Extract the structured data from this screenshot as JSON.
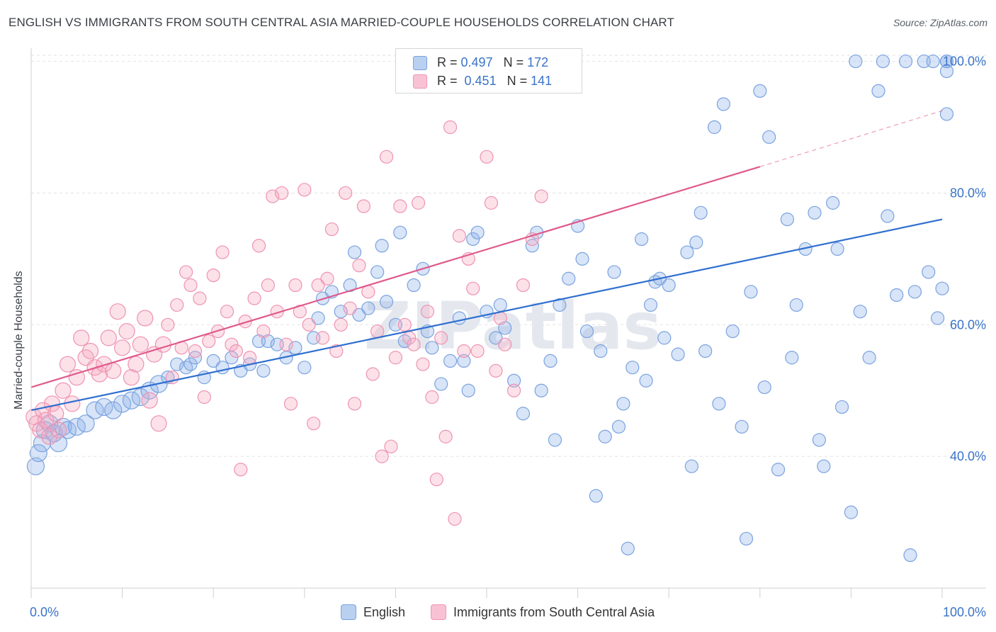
{
  "chart_data": {
    "type": "scatter",
    "title": "ENGLISH VS IMMIGRANTS FROM SOUTH CENTRAL ASIA MARRIED-COUPLE HOUSEHOLDS CORRELATION CHART",
    "source": "Source: ZipAtlas.com",
    "xlabel": "",
    "ylabel": "Married-couple Households",
    "xlim": [
      0,
      100
    ],
    "ylim": [
      20,
      102
    ],
    "x_tick_labels": [
      "0.0%",
      "100.0%"
    ],
    "y_ticks": [
      40,
      60,
      80,
      100
    ],
    "y_tick_labels": [
      "40.0%",
      "60.0%",
      "80.0%",
      "100.0%"
    ],
    "watermark": "ZIPatlas",
    "legend": {
      "rows": [
        {
          "r_label": "R =",
          "r_value": "0.497",
          "n_label": "N =",
          "n_value": "172"
        },
        {
          "r_label": "R =",
          "r_value": "0.451",
          "n_label": "N =",
          "n_value": "141"
        }
      ]
    },
    "series": [
      {
        "name": "English",
        "color": "#8fb3e8",
        "line_color": "#2f6fd0",
        "trend": {
          "x": [
            0,
            100
          ],
          "y": [
            47.0,
            76.0
          ]
        },
        "points": [
          [
            0.5,
            38.5
          ],
          [
            0.8,
            40.5
          ],
          [
            1.2,
            42
          ],
          [
            1.5,
            44
          ],
          [
            2,
            45
          ],
          [
            2.5,
            43.5
          ],
          [
            3,
            42
          ],
          [
            3.5,
            44.5
          ],
          [
            4,
            44
          ],
          [
            5,
            44.5
          ],
          [
            6,
            45
          ],
          [
            7,
            47
          ],
          [
            8,
            47.5
          ],
          [
            9,
            47
          ],
          [
            10,
            48
          ],
          [
            11,
            48.5
          ],
          [
            12,
            49
          ],
          [
            13,
            50
          ],
          [
            14,
            51
          ],
          [
            15,
            52
          ],
          [
            16,
            54
          ],
          [
            17,
            53.5
          ],
          [
            17.5,
            54
          ],
          [
            18,
            55
          ],
          [
            19,
            52
          ],
          [
            20,
            54.5
          ],
          [
            21,
            53.5
          ],
          [
            22,
            55
          ],
          [
            23,
            53
          ],
          [
            24,
            54
          ],
          [
            25,
            57.5
          ],
          [
            25.5,
            53
          ],
          [
            26,
            57.5
          ],
          [
            27,
            57
          ],
          [
            28,
            55
          ],
          [
            29,
            56.5
          ],
          [
            30,
            53.5
          ],
          [
            31,
            58
          ],
          [
            31.5,
            61
          ],
          [
            32,
            64
          ],
          [
            33,
            65
          ],
          [
            34,
            62
          ],
          [
            35,
            66
          ],
          [
            35.5,
            71
          ],
          [
            36,
            61.5
          ],
          [
            37,
            62.5
          ],
          [
            38,
            68
          ],
          [
            38.5,
            72
          ],
          [
            39,
            63.5
          ],
          [
            40,
            60
          ],
          [
            40.5,
            74
          ],
          [
            41,
            57.5
          ],
          [
            42,
            66
          ],
          [
            43,
            68.5
          ],
          [
            43.5,
            59
          ],
          [
            44,
            56.5
          ],
          [
            45,
            51
          ],
          [
            46,
            54.5
          ],
          [
            47,
            61
          ],
          [
            47.5,
            54.5
          ],
          [
            48,
            50
          ],
          [
            48.5,
            73
          ],
          [
            49,
            74
          ],
          [
            50,
            62
          ],
          [
            51,
            58
          ],
          [
            51.5,
            63
          ],
          [
            52,
            59.5
          ],
          [
            53,
            51.5
          ],
          [
            54,
            46.5
          ],
          [
            55,
            72
          ],
          [
            55.5,
            74
          ],
          [
            56,
            50
          ],
          [
            57,
            54.5
          ],
          [
            57.5,
            42.5
          ],
          [
            58,
            63
          ],
          [
            59,
            67
          ],
          [
            60,
            75
          ],
          [
            60.5,
            70
          ],
          [
            61,
            59
          ],
          [
            62,
            34
          ],
          [
            62.5,
            56
          ],
          [
            63,
            43
          ],
          [
            64,
            68
          ],
          [
            64.5,
            44.5
          ],
          [
            65,
            48
          ],
          [
            65.5,
            26
          ],
          [
            66,
            53.5
          ],
          [
            67,
            73
          ],
          [
            67.5,
            51.5
          ],
          [
            68,
            63
          ],
          [
            68.5,
            66.5
          ],
          [
            69,
            67
          ],
          [
            69.5,
            58
          ],
          [
            70,
            66
          ],
          [
            71,
            55.5
          ],
          [
            72,
            71
          ],
          [
            72.5,
            38.5
          ],
          [
            73,
            72.5
          ],
          [
            73.5,
            77
          ],
          [
            74,
            56
          ],
          [
            75,
            90
          ],
          [
            75.5,
            48
          ],
          [
            76,
            93.5
          ],
          [
            77,
            59
          ],
          [
            78,
            44.5
          ],
          [
            78.5,
            27.5
          ],
          [
            79,
            65
          ],
          [
            80,
            95.5
          ],
          [
            80.5,
            50.5
          ],
          [
            81,
            88.5
          ],
          [
            82,
            38
          ],
          [
            83,
            76
          ],
          [
            83.5,
            55
          ],
          [
            84,
            63
          ],
          [
            85,
            71.5
          ],
          [
            86,
            77
          ],
          [
            86.5,
            42.5
          ],
          [
            87,
            38.5
          ],
          [
            88,
            78.5
          ],
          [
            88.5,
            71.5
          ],
          [
            89,
            47.5
          ],
          [
            90,
            31.5
          ],
          [
            90.5,
            100
          ],
          [
            91,
            62
          ],
          [
            92,
            55
          ],
          [
            93,
            95.5
          ],
          [
            93.5,
            100
          ],
          [
            94,
            76.5
          ],
          [
            95,
            64.5
          ],
          [
            96,
            100
          ],
          [
            96.5,
            25
          ],
          [
            97,
            65
          ],
          [
            98,
            100
          ],
          [
            98.5,
            68
          ],
          [
            99,
            100
          ],
          [
            99.5,
            61
          ],
          [
            100,
            65.5
          ],
          [
            100.5,
            100
          ],
          [
            101,
            98.5
          ],
          [
            102,
            100
          ],
          [
            103,
            92
          ]
        ]
      },
      {
        "name": "Immigrants from South Central Asia",
        "color": "#f5a8c0",
        "line_color": "#e05a8c",
        "trend": {
          "x": [
            0,
            80
          ],
          "y": [
            50.5,
            84.0
          ]
        },
        "trend_dashed": {
          "x": [
            80,
            100
          ],
          "y": [
            84.0,
            92.5
          ]
        },
        "points": [
          [
            0.3,
            46
          ],
          [
            0.6,
            45
          ],
          [
            1,
            44
          ],
          [
            1.3,
            47
          ],
          [
            1.6,
            45.5
          ],
          [
            2,
            43
          ],
          [
            2.3,
            48
          ],
          [
            2.7,
            46.5
          ],
          [
            3,
            44
          ],
          [
            3.5,
            50
          ],
          [
            4,
            54
          ],
          [
            4.5,
            48
          ],
          [
            5,
            52
          ],
          [
            5.5,
            58
          ],
          [
            6,
            55
          ],
          [
            6.5,
            56
          ],
          [
            7,
            53.5
          ],
          [
            7.5,
            52.5
          ],
          [
            8,
            54
          ],
          [
            8.5,
            58
          ],
          [
            9,
            53
          ],
          [
            9.5,
            62
          ],
          [
            10,
            56.5
          ],
          [
            10.5,
            59
          ],
          [
            11,
            52
          ],
          [
            11.5,
            54
          ],
          [
            12,
            57
          ],
          [
            12.5,
            61
          ],
          [
            13,
            48.5
          ],
          [
            13.5,
            55.5
          ],
          [
            14,
            45
          ],
          [
            14.5,
            57
          ],
          [
            15,
            60
          ],
          [
            15.5,
            52
          ],
          [
            16,
            63
          ],
          [
            16.5,
            56.5
          ],
          [
            17,
            68
          ],
          [
            17.5,
            66
          ],
          [
            18,
            56
          ],
          [
            18.5,
            64
          ],
          [
            19,
            49
          ],
          [
            19.5,
            57.5
          ],
          [
            20,
            67.5
          ],
          [
            20.5,
            59
          ],
          [
            21,
            71
          ],
          [
            21.5,
            62
          ],
          [
            22,
            57
          ],
          [
            22.5,
            56
          ],
          [
            23,
            38
          ],
          [
            23.5,
            60.5
          ],
          [
            24,
            55
          ],
          [
            24.5,
            64
          ],
          [
            25,
            72
          ],
          [
            25.5,
            59
          ],
          [
            26,
            66
          ],
          [
            26.5,
            79.5
          ],
          [
            27,
            62
          ],
          [
            27.5,
            80
          ],
          [
            28,
            57
          ],
          [
            28.5,
            48
          ],
          [
            29,
            66
          ],
          [
            29.5,
            62
          ],
          [
            30,
            80.5
          ],
          [
            30.5,
            60
          ],
          [
            31,
            45
          ],
          [
            31.5,
            66
          ],
          [
            32,
            58
          ],
          [
            32.5,
            67
          ],
          [
            33,
            74.5
          ],
          [
            33.5,
            56
          ],
          [
            34,
            60
          ],
          [
            34.5,
            80
          ],
          [
            35,
            62.5
          ],
          [
            35.5,
            48
          ],
          [
            36,
            69
          ],
          [
            36.5,
            78
          ],
          [
            37,
            65
          ],
          [
            37.5,
            52.5
          ],
          [
            38,
            59
          ],
          [
            38.5,
            40
          ],
          [
            39,
            85.5
          ],
          [
            39.5,
            41.5
          ],
          [
            40,
            55
          ],
          [
            40.5,
            78
          ],
          [
            41,
            60
          ],
          [
            41.5,
            58
          ],
          [
            42,
            57
          ],
          [
            42.5,
            78.5
          ],
          [
            43,
            54
          ],
          [
            43.5,
            62
          ],
          [
            44,
            49
          ],
          [
            44.5,
            36.5
          ],
          [
            45,
            58
          ],
          [
            45.5,
            43
          ],
          [
            46,
            90
          ],
          [
            46.5,
            30.5
          ],
          [
            47,
            73.5
          ],
          [
            47.5,
            56
          ],
          [
            48,
            70
          ],
          [
            48.5,
            65.5
          ],
          [
            49,
            56
          ],
          [
            50,
            85.5
          ],
          [
            50.5,
            78.5
          ],
          [
            51,
            53
          ],
          [
            51.5,
            61
          ],
          [
            52,
            57
          ],
          [
            53,
            50
          ],
          [
            54,
            66
          ],
          [
            55,
            73
          ],
          [
            56,
            79.5
          ]
        ]
      }
    ]
  }
}
